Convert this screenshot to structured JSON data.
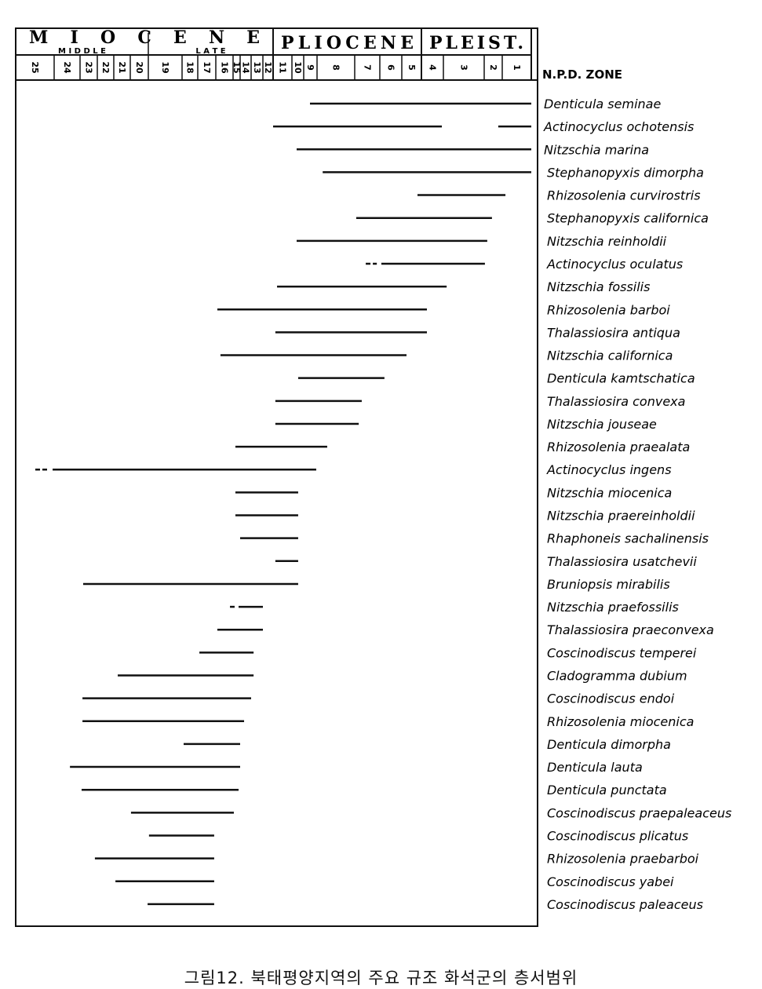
{
  "chart_data": {
    "type": "range-chart",
    "title": "",
    "xlabel": "N.P.D. ZONE",
    "epochs": [
      {
        "name": "M I O C E N E",
        "from": 26,
        "to": 12
      },
      {
        "name": "PLIOCENE",
        "from": 12,
        "to": 5
      },
      {
        "name": "PLEIST.",
        "from": 5,
        "to": 1
      }
    ],
    "subepochs": [
      {
        "name": "M I D D L E",
        "from": 26,
        "to": 20
      },
      {
        "name": "L A T E",
        "from": 20,
        "to": 12
      }
    ],
    "zones": [
      "25",
      "24",
      "23",
      "22",
      "21",
      "20",
      "19",
      "18",
      "17",
      "16",
      "15",
      "14",
      "13",
      "12",
      "11",
      "10",
      "9",
      "8",
      "7",
      "6",
      "5",
      "4",
      "3",
      "2",
      "1"
    ],
    "position_note": "bar endpoints in zone-scale units: zone z spans z+1 (older, left) to z (younger, right)",
    "taxa": [
      {
        "name": "Denticula  seminae",
        "ranges": [
          [
            9.53,
            1.0
          ]
        ]
      },
      {
        "name": "Actinocyclus  ochotensis",
        "ranges": [
          [
            12.0,
            4.07
          ],
          [
            2.22,
            1.0
          ]
        ]
      },
      {
        "name": "Nitzschia  marina",
        "ranges": [
          [
            10.6,
            1.0
          ]
        ]
      },
      {
        "name": "Stephanopyxis  dimorpha",
        "ranges": [
          [
            8.85,
            1.0
          ]
        ]
      },
      {
        "name": "Rhizosolenia  curvirostris",
        "ranges": [
          [
            5.2,
            1.89
          ]
        ]
      },
      {
        "name": "Stephanopyxis  californica",
        "ranges": [
          [
            7.94,
            2.57
          ]
        ]
      },
      {
        "name": "Nitzschia  reinholdii",
        "ranges": [
          [
            10.6,
            2.83
          ]
        ]
      },
      {
        "name": "Actinocyclus  oculatus",
        "dashed": [
          [
            7.56,
            7.12
          ]
        ],
        "ranges": [
          [
            6.93,
            2.96
          ]
        ]
      },
      {
        "name": "Nitzschia  fossilis",
        "ranges": [
          [
            11.79,
            3.92
          ]
        ]
      },
      {
        "name": "Rhizosolenia  barboi",
        "ranges": [
          [
            16.91,
            4.75
          ]
        ]
      },
      {
        "name": "Thalassiosira  antiqua",
        "ranges": [
          [
            11.88,
            4.75
          ]
        ]
      },
      {
        "name": "Nitzschia  californica",
        "ranges": [
          [
            16.73,
            5.76
          ]
        ]
      },
      {
        "name": "Denticula  kamtschatica",
        "ranges": [
          [
            10.47,
            6.79
          ]
        ]
      },
      {
        "name": "Thalassiosira  convexa",
        "ranges": [
          [
            11.88,
            7.72
          ]
        ]
      },
      {
        "name": "Nitzschia  jouseae",
        "ranges": [
          [
            11.88,
            7.84
          ]
        ]
      },
      {
        "name": "Rhizosolenia  praealata",
        "ranges": [
          [
            15.67,
            8.73
          ]
        ]
      },
      {
        "name": "Actinocyclus  ingens",
        "dashed": [
          [
            25.49,
            25.18
          ]
        ],
        "ranges": [
          [
            25.04,
            9.06
          ]
        ]
      },
      {
        "name": "Nitzschia  miocenica",
        "ranges": [
          [
            15.67,
            10.47
          ]
        ]
      },
      {
        "name": "Nitzschia  praereinholdii",
        "ranges": [
          [
            15.67,
            10.47
          ]
        ]
      },
      {
        "name": "Rhaphoneis  sachalinensis",
        "ranges": [
          [
            15.0,
            10.47
          ]
        ]
      },
      {
        "name": "Thalassiosira  usatchevii",
        "ranges": [
          [
            11.88,
            10.47
          ]
        ]
      },
      {
        "name": "Bruniopsis  mirabilis",
        "ranges": [
          [
            23.82,
            10.47
          ]
        ]
      },
      {
        "name": "Nitzschia  praefossilis",
        "dashed": [
          [
            16.18,
            15.78
          ]
        ],
        "ranges": [
          [
            15.22,
            13.0
          ]
        ]
      },
      {
        "name": "Thalassiosira  praeconvexa",
        "ranges": [
          [
            16.91,
            13.0
          ]
        ]
      },
      {
        "name": "Coscinodiscus  temperei",
        "ranges": [
          [
            17.91,
            13.79
          ]
        ]
      },
      {
        "name": "Cladogramma  dubium",
        "ranges": [
          [
            21.76,
            13.79
          ]
        ]
      },
      {
        "name": "Coscinodiscus  endoi",
        "ranges": [
          [
            23.86,
            14.0
          ]
        ]
      },
      {
        "name": "Rhizosolenia  miocenica",
        "ranges": [
          [
            23.86,
            14.64
          ]
        ]
      },
      {
        "name": "Denticula  dimorpha",
        "ranges": [
          [
            18.9,
            15.0
          ]
        ]
      },
      {
        "name": "Denticula  lauta",
        "ranges": [
          [
            24.39,
            15.0
          ]
        ]
      },
      {
        "name": "Denticula  punctata",
        "ranges": [
          [
            23.91,
            15.22
          ]
        ]
      },
      {
        "name": "Coscinodiscus  praepaleaceus",
        "ranges": [
          [
            20.96,
            15.89
          ]
        ]
      },
      {
        "name": "Coscinodiscus  plicatus",
        "ranges": [
          [
            19.98,
            17.09
          ]
        ]
      },
      {
        "name": "Rhizosolenia  praebarboi",
        "ranges": [
          [
            23.14,
            17.09
          ]
        ]
      },
      {
        "name": "Coscinodiscus  yabei",
        "ranges": [
          [
            21.9,
            17.09
          ]
        ]
      },
      {
        "name": "Coscinodiscus  paleaceus",
        "ranges": [
          [
            20.04,
            17.09
          ]
        ]
      }
    ]
  },
  "caption": "그림12. 북태평양지역의 주요 규조 화석군의 층서범위"
}
